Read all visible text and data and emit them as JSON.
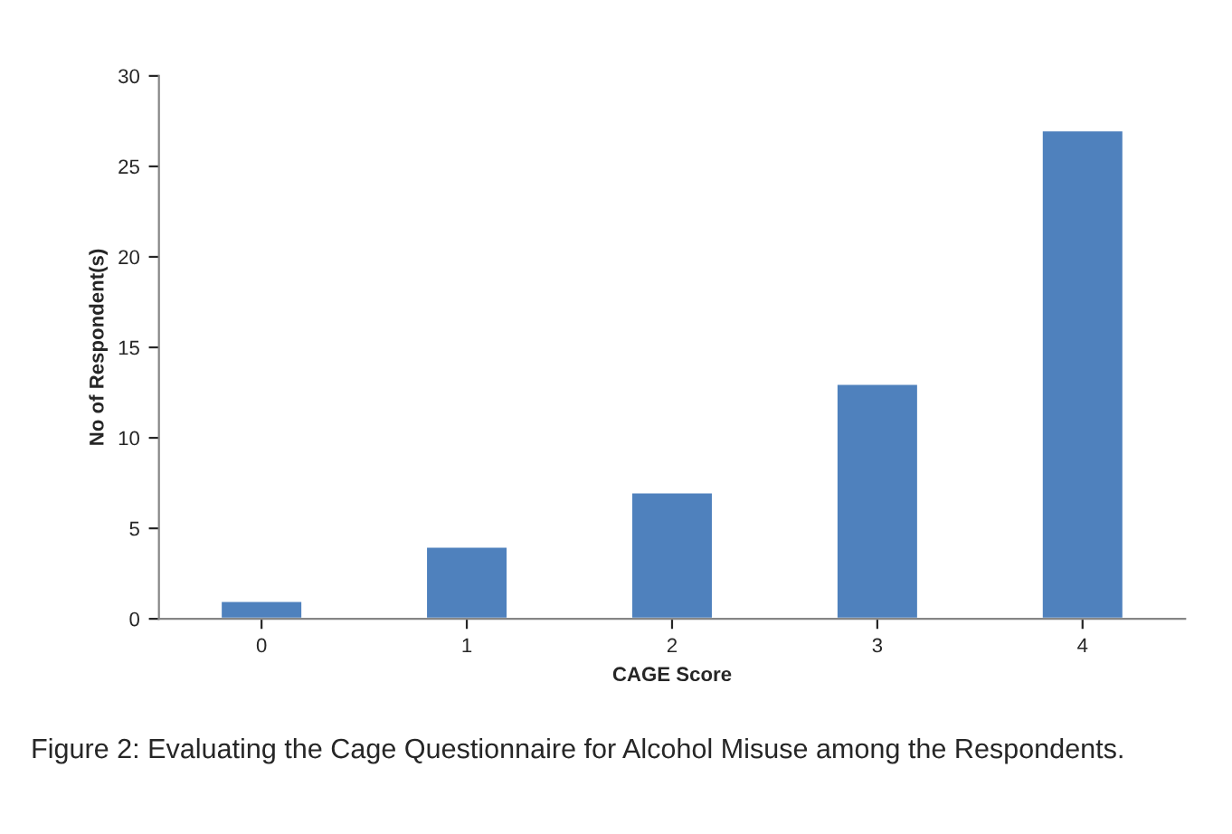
{
  "chart_data": {
    "type": "bar",
    "xlabel": "CAGE Score",
    "ylabel": "No of Respondent(s)",
    "categories": [
      "0",
      "1",
      "2",
      "3",
      "4"
    ],
    "values": [
      1,
      4,
      7,
      13,
      27
    ],
    "color": "#4f81bd",
    "ylim": [
      0,
      30
    ],
    "yticks": [
      0,
      5,
      10,
      15,
      20,
      25,
      30
    ],
    "grid": false,
    "legend": false,
    "annotations": [
      "Figure 2: Evaluating the Cage Questionnaire for Alcohol Misuse among the Respondents."
    ]
  }
}
